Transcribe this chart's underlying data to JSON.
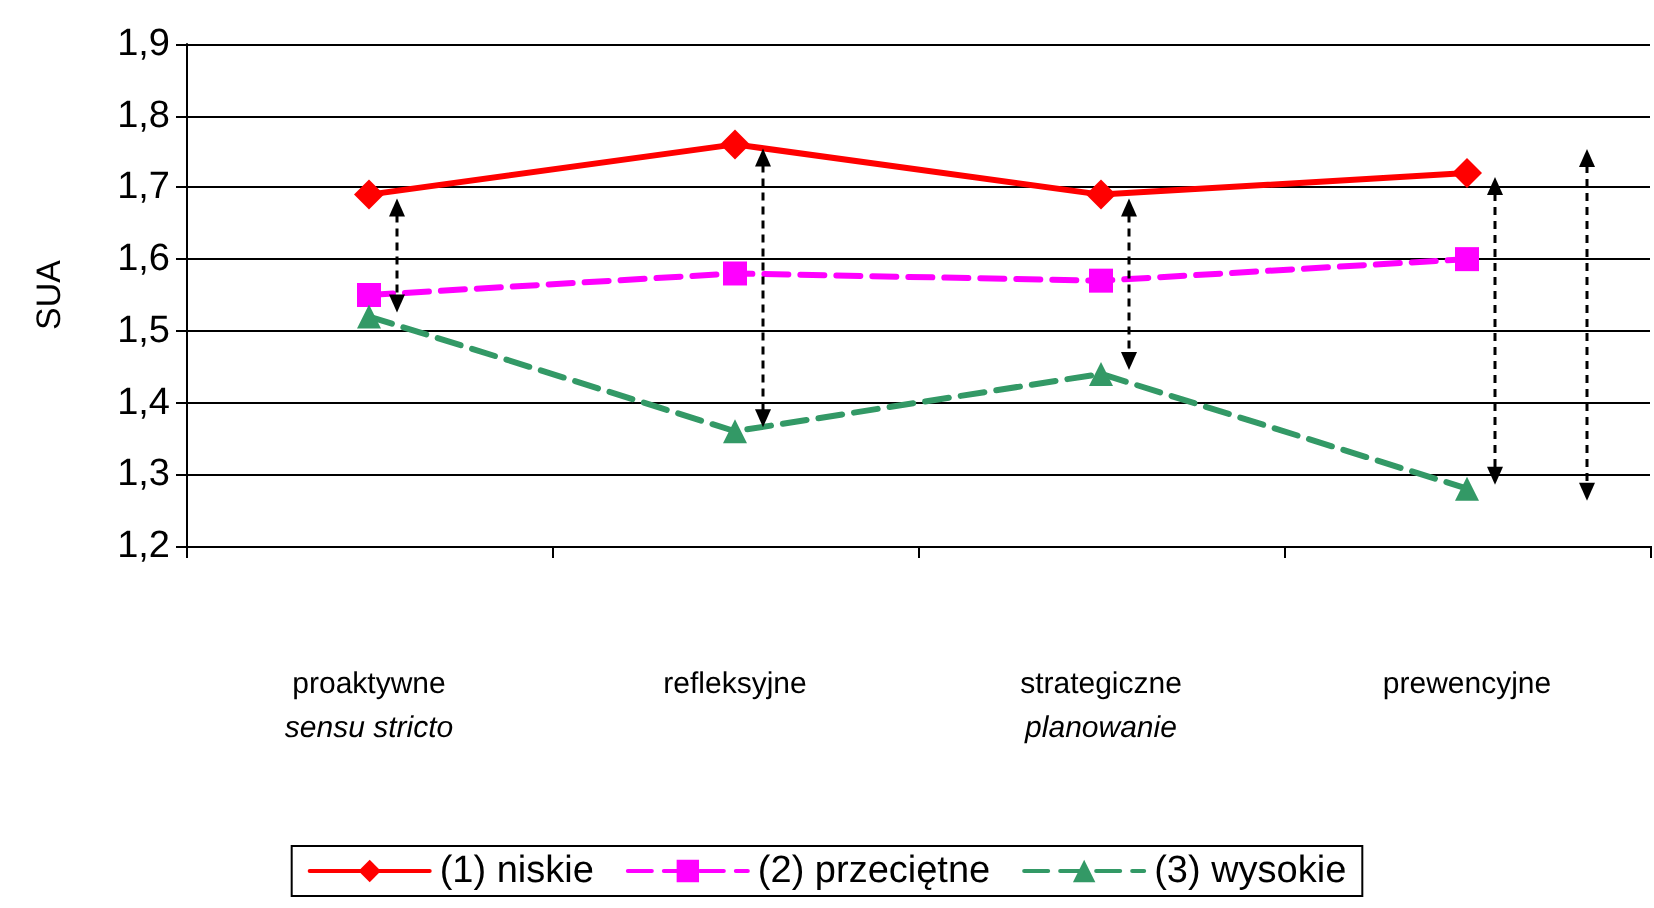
{
  "chart_data": {
    "type": "line",
    "ylabel": "SUA",
    "categories": [
      "proaktywne\nsensu stricto",
      "refleksyjne",
      "strategiczne\nplanowanie",
      "prewencyjne"
    ],
    "series": [
      {
        "name": "(1) niskie",
        "color": "#ff0000",
        "values": [
          1.69,
          1.76,
          1.69,
          1.72
        ],
        "marker": "diamond",
        "line_style": "solid"
      },
      {
        "name": "(2) przeciętne",
        "color": "#ff00ff",
        "values": [
          1.55,
          1.58,
          1.57,
          1.6
        ],
        "marker": "square",
        "line_style": "dashed"
      },
      {
        "name": "(3) wysokie",
        "color": "#339966",
        "values": [
          1.52,
          1.36,
          1.44,
          1.28
        ],
        "marker": "triangle",
        "line_style": "dashed"
      }
    ],
    "ylim": [
      1.2,
      1.9
    ],
    "yticks": [
      {
        "value": 1.2,
        "label": "1,2"
      },
      {
        "value": 1.3,
        "label": "1,3"
      },
      {
        "value": 1.4,
        "label": "1,4"
      },
      {
        "value": 1.5,
        "label": "1,5"
      },
      {
        "value": 1.6,
        "label": "1,6"
      },
      {
        "value": 1.7,
        "label": "1,7"
      },
      {
        "value": 1.8,
        "label": "1,8"
      },
      {
        "value": 1.9,
        "label": "1,9"
      }
    ],
    "grid": "y",
    "legend": "bottom"
  }
}
